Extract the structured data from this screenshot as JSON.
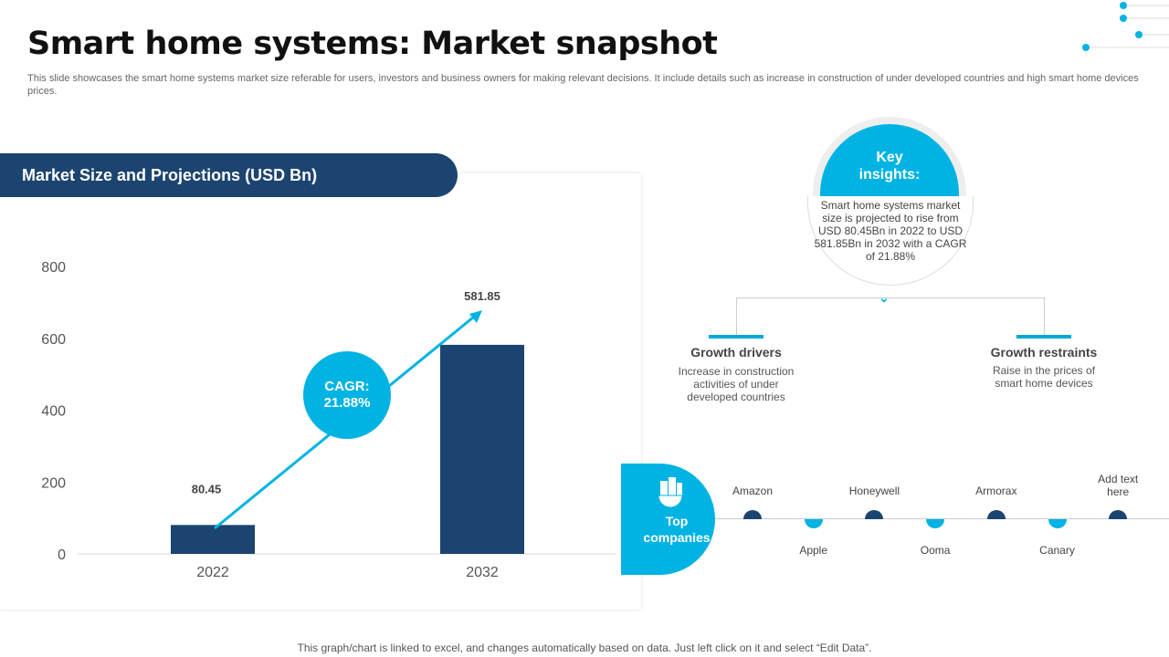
{
  "title": "Smart home systems: Market snapshot",
  "subtitle": "This slide showcases the smart home systems market size referable for users, investors and business owners for making relevant decisions. It include details such as increase in construction of under developed countries and high smart home devices prices.",
  "chart_header": "Market Size and Projections (USD Bn)",
  "chart_data": {
    "type": "bar",
    "categories": [
      "2022",
      "2032"
    ],
    "values": [
      80.45,
      581.85
    ],
    "data_labels": [
      "80.45",
      "581.85"
    ],
    "yticks": [
      "0",
      "200",
      "400",
      "600",
      "800"
    ],
    "ylim": [
      0,
      800
    ],
    "grid": false,
    "bar_color": "#1c4470",
    "annotation": "CAGR: 21.88%"
  },
  "cagr": {
    "line1": "CAGR:",
    "line2": "21.88%"
  },
  "key_insights": {
    "title_line1": "Key",
    "title_line2": "insights:",
    "text": "Smart home systems market size is projected to rise from USD 80.45Bn in 2022 to USD 581.85Bn in 2032 with a CAGR of 21.88%"
  },
  "growth_drivers": {
    "title": "Growth drivers",
    "text": "Increase in construction activities of under developed countries"
  },
  "growth_restraints": {
    "title": "Growth restraints",
    "text": "Raise in the prices of smart home devices"
  },
  "top_companies": {
    "label_line1": "Top",
    "label_line2": "companies",
    "icon": "buildings-globe-icon",
    "items": [
      "Amazon",
      "Apple",
      "Honeywell",
      "Ooma",
      "Armorax",
      "Canary",
      "Add text here"
    ]
  },
  "footer": "This graph/chart is linked to excel,  and changes automatically based on data. Just left click on it and select “Edit Data”.",
  "colors": {
    "navy": "#1c4470",
    "cyan": "#00b3e3"
  }
}
